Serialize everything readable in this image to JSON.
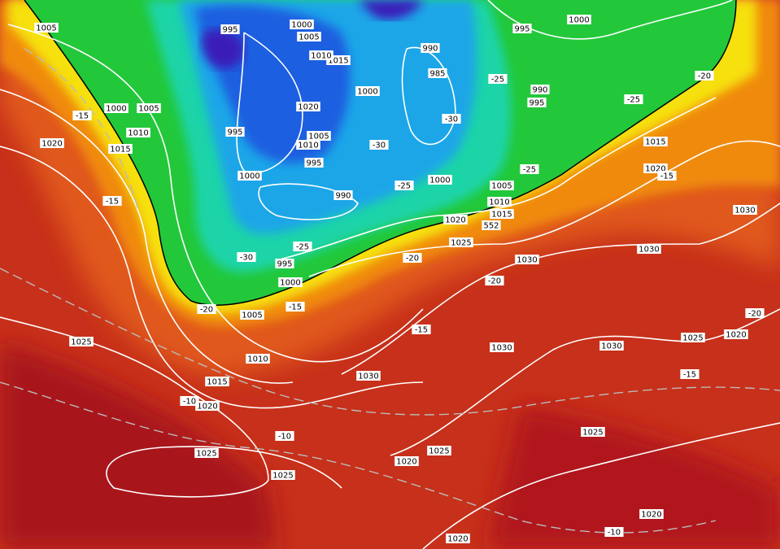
{
  "map": {
    "isobar_labels": [
      1005,
      995,
      1000,
      1005,
      1015,
      1010,
      990,
      985,
      1000,
      1020,
      1005,
      1010,
      995,
      995,
      1000,
      990,
      1000,
      1005,
      1010,
      1015,
      1020,
      1025,
      1030,
      995,
      1000,
      1005,
      1010,
      1015,
      1020,
      1025,
      1000,
      1005,
      1010,
      1015,
      1020,
      1000,
      995,
      990,
      995,
      1015,
      1020,
      1030,
      1030,
      1030,
      1030,
      1030,
      1025,
      1020,
      1025,
      1025,
      1025,
      1020,
      1025,
      1020,
      1020
    ],
    "temperature_labels": [
      -15,
      -15,
      -25,
      -30,
      -30,
      -25,
      -25,
      -25,
      -20,
      -15,
      -25,
      -30,
      -20,
      -20,
      -15,
      -20,
      -15,
      -15,
      -20,
      -10,
      -10,
      -10
    ],
    "geopotential_label": 552
  }
}
